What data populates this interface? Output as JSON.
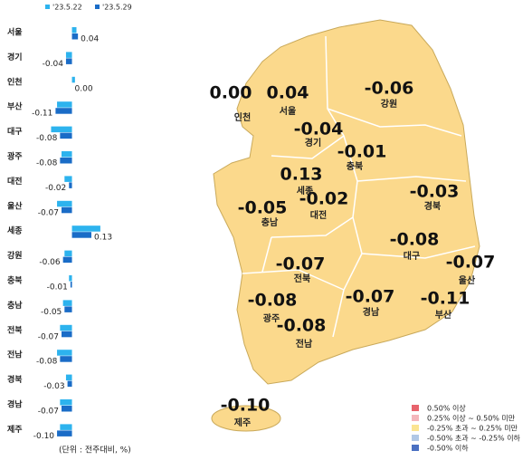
{
  "chart_data": {
    "type": "hbar",
    "categories": [
      "서울",
      "경기",
      "인천",
      "부산",
      "대구",
      "광주",
      "대전",
      "울산",
      "세종",
      "강원",
      "충북",
      "충남",
      "전북",
      "전남",
      "경북",
      "경남",
      "제주"
    ],
    "series": [
      {
        "name": "'23.5.22",
        "color": "#2db3ee",
        "values": [
          0.03,
          -0.04,
          0.02,
          -0.1,
          -0.14,
          -0.07,
          -0.05,
          -0.1,
          0.19,
          -0.05,
          -0.02,
          -0.06,
          -0.08,
          -0.1,
          -0.04,
          -0.08,
          -0.08
        ]
      },
      {
        "name": "'23.5.29",
        "color": "#1a6cc7",
        "values": [
          0.04,
          -0.04,
          0.0,
          -0.11,
          -0.08,
          -0.08,
          -0.02,
          -0.07,
          0.13,
          -0.06,
          -0.01,
          -0.05,
          -0.07,
          -0.08,
          -0.03,
          -0.07,
          -0.1
        ],
        "value_labels": [
          "0.04",
          "-0.04",
          "0.00",
          "-0.11",
          "-0.08",
          "-0.08",
          "-0.02",
          "-0.07",
          "0.13",
          "-0.06",
          "-0.01",
          "-0.05",
          "-0.07",
          "-0.08",
          "-0.03",
          "-0.07",
          "-0.10"
        ]
      }
    ],
    "xlim": [
      -0.27,
      0.33
    ],
    "note": "(단위 : 전주대비, %)"
  },
  "map_legend": [
    {
      "color": "#e8636c",
      "label": "0.50% 이상"
    },
    {
      "color": "#f4b6bb",
      "label": "0.25% 이상 ~ 0.50% 미만"
    },
    {
      "color": "#fbe492",
      "label": "-0.25% 초과 ~ 0.25% 미만"
    },
    {
      "color": "#b1c8e6",
      "label": "-0.50% 초과 ~ -0.25% 이하"
    },
    {
      "color": "#4a70c2",
      "label": "-0.50% 이하"
    }
  ]
}
